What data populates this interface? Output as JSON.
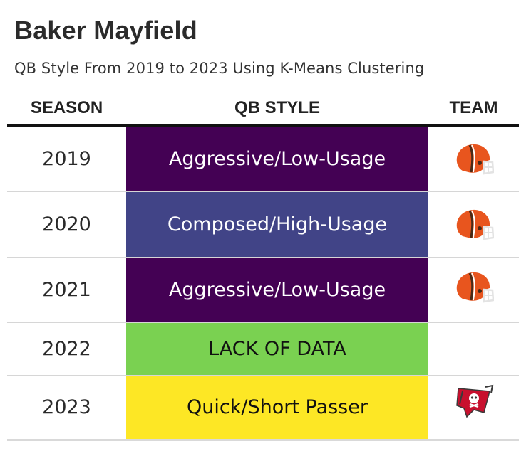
{
  "title": "Baker Mayfield",
  "subtitle": "QB Style From 2019 to 2023 Using K-Means Clustering",
  "columns": {
    "season": "SEASON",
    "qb_style": "QB STYLE",
    "team": "TEAM"
  },
  "rows": [
    {
      "season": "2019",
      "qb_style": "Aggressive/Low-Usage",
      "style_color": "#440154",
      "text_color": "#ffffff",
      "team_logo": "browns-helmet-icon"
    },
    {
      "season": "2020",
      "qb_style": "Composed/High-Usage",
      "style_color": "#414487",
      "text_color": "#ffffff",
      "team_logo": "browns-helmet-icon"
    },
    {
      "season": "2021",
      "qb_style": "Aggressive/Low-Usage",
      "style_color": "#440154",
      "text_color": "#ffffff",
      "team_logo": "browns-helmet-icon"
    },
    {
      "season": "2022",
      "qb_style": "LACK OF DATA",
      "style_color": "#7ad151",
      "text_color": "#111111",
      "team_logo": ""
    },
    {
      "season": "2023",
      "qb_style": "Quick/Short Passer",
      "style_color": "#fde725",
      "text_color": "#111111",
      "team_logo": "buccaneers-flag-icon"
    }
  ]
}
